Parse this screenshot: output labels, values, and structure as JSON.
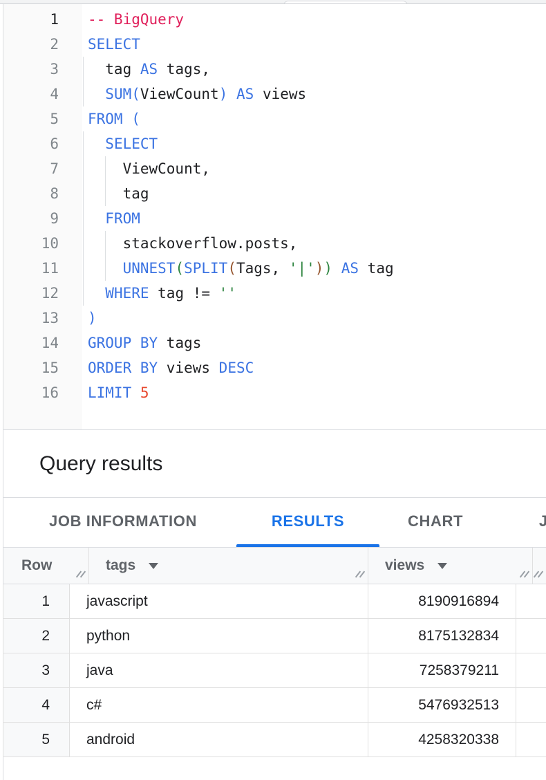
{
  "editor": {
    "lines": [
      {
        "n": "1",
        "active": true,
        "tokens": [
          {
            "t": "cm",
            "v": "-- BigQuery"
          }
        ]
      },
      {
        "n": "2",
        "tokens": [
          {
            "t": "kw",
            "v": "SELECT"
          }
        ]
      },
      {
        "n": "3",
        "tokens": [
          {
            "t": "id",
            "v": "  tag "
          },
          {
            "t": "kw",
            "v": "AS"
          },
          {
            "t": "id",
            "v": " tags,"
          }
        ]
      },
      {
        "n": "4",
        "tokens": [
          {
            "t": "id",
            "v": "  "
          },
          {
            "t": "kw",
            "v": "SUM"
          },
          {
            "t": "p1",
            "v": "("
          },
          {
            "t": "id",
            "v": "ViewCount"
          },
          {
            "t": "p1",
            "v": ")"
          },
          {
            "t": "id",
            "v": " "
          },
          {
            "t": "kw",
            "v": "AS"
          },
          {
            "t": "id",
            "v": " views"
          }
        ]
      },
      {
        "n": "5",
        "tokens": [
          {
            "t": "kw",
            "v": "FROM"
          },
          {
            "t": "id",
            "v": " "
          },
          {
            "t": "p1",
            "v": "("
          }
        ]
      },
      {
        "n": "6",
        "tokens": [
          {
            "t": "id",
            "v": "  "
          },
          {
            "t": "kw",
            "v": "SELECT"
          }
        ]
      },
      {
        "n": "7",
        "tokens": [
          {
            "t": "id",
            "v": "    ViewCount,"
          }
        ]
      },
      {
        "n": "8",
        "tokens": [
          {
            "t": "id",
            "v": "    tag"
          }
        ]
      },
      {
        "n": "9",
        "tokens": [
          {
            "t": "id",
            "v": "  "
          },
          {
            "t": "kw",
            "v": "FROM"
          }
        ]
      },
      {
        "n": "10",
        "tokens": [
          {
            "t": "id",
            "v": "    stackoverflow.posts,"
          }
        ]
      },
      {
        "n": "11",
        "tokens": [
          {
            "t": "id",
            "v": "    "
          },
          {
            "t": "kw",
            "v": "UNNEST"
          },
          {
            "t": "p2",
            "v": "("
          },
          {
            "t": "kw",
            "v": "SPLIT"
          },
          {
            "t": "p3",
            "v": "("
          },
          {
            "t": "id",
            "v": "Tags, "
          },
          {
            "t": "str",
            "v": "'|'"
          },
          {
            "t": "p3",
            "v": ")"
          },
          {
            "t": "p2",
            "v": ")"
          },
          {
            "t": "id",
            "v": " "
          },
          {
            "t": "kw",
            "v": "AS"
          },
          {
            "t": "id",
            "v": " tag"
          }
        ]
      },
      {
        "n": "12",
        "tokens": [
          {
            "t": "id",
            "v": "  "
          },
          {
            "t": "kw",
            "v": "WHERE"
          },
          {
            "t": "id",
            "v": " tag != "
          },
          {
            "t": "str",
            "v": "''"
          }
        ]
      },
      {
        "n": "13",
        "tokens": [
          {
            "t": "p1",
            "v": ")"
          }
        ]
      },
      {
        "n": "14",
        "tokens": [
          {
            "t": "kw",
            "v": "GROUP BY"
          },
          {
            "t": "id",
            "v": " tags"
          }
        ]
      },
      {
        "n": "15",
        "tokens": [
          {
            "t": "kw",
            "v": "ORDER BY"
          },
          {
            "t": "id",
            "v": " views "
          },
          {
            "t": "kw",
            "v": "DESC"
          }
        ]
      },
      {
        "n": "16",
        "tokens": [
          {
            "t": "kw",
            "v": "LIMIT"
          },
          {
            "t": "id",
            "v": " "
          },
          {
            "t": "num",
            "v": "5"
          }
        ]
      }
    ]
  },
  "results": {
    "title": "Query results"
  },
  "tabs": [
    {
      "label": "JOB INFORMATION",
      "active": false
    },
    {
      "label": "RESULTS",
      "active": true
    },
    {
      "label": "CHART",
      "active": false
    },
    {
      "label": "JSON",
      "active": false
    }
  ],
  "table": {
    "columns": [
      {
        "label": "Row",
        "menu": false
      },
      {
        "label": "tags",
        "menu": true
      },
      {
        "label": "views",
        "menu": true
      }
    ],
    "rows": [
      {
        "row": "1",
        "tags": "javascript",
        "views": "8190916894"
      },
      {
        "row": "2",
        "tags": "python",
        "views": "8175132834"
      },
      {
        "row": "3",
        "tags": "java",
        "views": "7258379211"
      },
      {
        "row": "4",
        "tags": "c#",
        "views": "5476932513"
      },
      {
        "row": "5",
        "tags": "android",
        "views": "4258320338"
      }
    ]
  },
  "icons": {
    "column_menu_icon": "triangle-down",
    "resize_grip_icon": "double-slash"
  },
  "colors": {
    "accent": "#1a73e8",
    "keyword": "#3b73e2",
    "comment": "#e01e5a",
    "string": "#2e8540",
    "number": "#e8492f",
    "bracket1": "#3b73e2",
    "bracket2": "#2e8540",
    "bracket3": "#96562f",
    "text_dark": "#202124",
    "text_gray": "#5f6368",
    "line_number": "#80868b"
  }
}
